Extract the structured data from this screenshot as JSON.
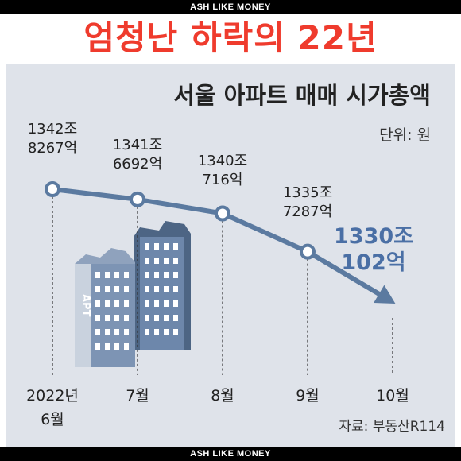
{
  "header_bar": "ASH LIKE MONEY",
  "footer_bar": "ASH LIKE MONEY",
  "headline": "엄청난 하락의 22년",
  "chart_data": {
    "type": "line",
    "title": "서울 아파트 매매 시가총액",
    "unit_label": "단위: 원",
    "source": "자료: 부동산R114",
    "categories": [
      [
        "2022년",
        "6월"
      ],
      [
        "7월"
      ],
      [
        "8월"
      ],
      [
        "9월"
      ],
      [
        "10월"
      ]
    ],
    "values": [
      13428267,
      13416692,
      13400716,
      13357287,
      13300102
    ],
    "data_labels": [
      [
        "1342조",
        "8267억"
      ],
      [
        "1341조",
        "6692억"
      ],
      [
        "1340조",
        "716억"
      ],
      [
        "1335조",
        "7287억"
      ],
      [
        "1330조",
        "102억"
      ]
    ],
    "building_lettering": "APT",
    "colors": {
      "line": "#5b7aa0",
      "highlight_label": "#4a6fa5",
      "headline": "#ef3b2d",
      "panel": "#dfe3ea"
    }
  }
}
